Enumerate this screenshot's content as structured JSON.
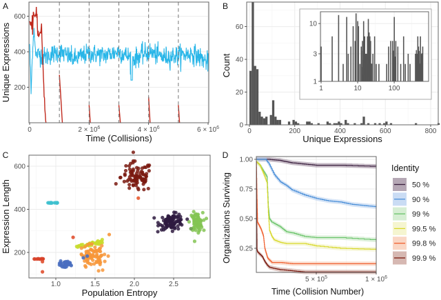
{
  "chart_data": [
    {
      "panel": "A",
      "type": "line",
      "xlabel": "Time (Collisions)",
      "ylabel": "Unique Expressions",
      "xlim": [
        0,
        6000000
      ],
      "ylim": [
        0,
        680
      ],
      "xticks": [
        0,
        2000000,
        4000000,
        6000000
      ],
      "xtick_labels": [
        "0",
        "2 × 10^6",
        "4 × 10^6",
        "6 × 10^6"
      ],
      "yticks": [
        200,
        400,
        600
      ],
      "ytick_labels": [
        "200",
        "400",
        "600"
      ],
      "vlines_dashed": [
        1000000,
        2000000,
        3000000,
        4000000,
        5000000
      ],
      "grid": true,
      "series": [
        {
          "name": "population",
          "color": "#29b6e8",
          "description": "noisy line around 380 after initial transient",
          "x": [
            0,
            50000,
            100000,
            150000,
            200000,
            300000,
            500000,
            1000000,
            1500000,
            2000000,
            2500000,
            3000000,
            3500000,
            4000000,
            4500000,
            5000000,
            5500000,
            6000000
          ],
          "y": [
            450,
            160,
            420,
            540,
            380,
            390,
            370,
            400,
            360,
            390,
            380,
            400,
            360,
            400,
            370,
            380,
            390,
            340
          ]
        },
        {
          "name": "bursts",
          "color": "#c0281c",
          "segments": [
            {
              "x": [
                0,
                50000,
                100000,
                200000,
                250000,
                300000,
                400000,
                450000,
                500000,
                550000
              ],
              "y": [
                580,
                520,
                560,
                640,
                600,
                470,
                510,
                300,
                100,
                0
              ]
            },
            {
              "x": [
                1000000,
                1050000,
                1100000
              ],
              "y": [
                270,
                140,
                0
              ]
            },
            {
              "x": [
                2000000,
                2040000
              ],
              "y": [
                100,
                0
              ]
            },
            {
              "x": [
                3000000,
                3050000
              ],
              "y": [
                100,
                0
              ]
            },
            {
              "x": [
                4000000,
                4050000
              ],
              "y": [
                145,
                0
              ]
            },
            {
              "x": [
                5000000,
                5040000
              ],
              "y": [
                100,
                0
              ]
            }
          ]
        }
      ]
    },
    {
      "panel": "B",
      "type": "bar",
      "xlabel": "Unique Expressions",
      "ylabel": "Count",
      "xlim": [
        -10,
        840
      ],
      "ylim": [
        0,
        75
      ],
      "xticks": [
        0,
        200,
        400,
        600,
        800
      ],
      "xtick_labels": [
        "0",
        "200",
        "400",
        "600",
        "800"
      ],
      "yticks": [
        0,
        20,
        40,
        60
      ],
      "ytick_labels": [
        "0",
        "20",
        "40",
        "60"
      ],
      "grid": true,
      "bin_width": 10,
      "bins": [
        0,
        10,
        20,
        30,
        40,
        50,
        60,
        70,
        90,
        100,
        110,
        120,
        130,
        170,
        190,
        200,
        210,
        250,
        260,
        270,
        300,
        340,
        350,
        370,
        380,
        390,
        400,
        420,
        430,
        460,
        490,
        500,
        520,
        550,
        570,
        590,
        600,
        620,
        730,
        830
      ],
      "values": [
        33,
        75,
        36,
        34,
        8,
        5,
        4,
        5,
        6,
        15,
        5,
        3,
        3,
        2,
        3,
        2,
        1,
        2,
        2,
        1,
        1,
        2,
        1,
        1,
        1,
        2,
        1,
        3,
        1,
        1,
        1,
        5,
        1,
        1,
        1,
        1,
        2,
        1,
        1,
        1
      ],
      "inset": {
        "type": "bar",
        "xscale": "log",
        "yscale": "log",
        "xlim": [
          1,
          800
        ],
        "ylim": [
          1,
          16
        ],
        "xticks": [
          1,
          10,
          100
        ],
        "xtick_labels": [
          "1",
          "10",
          "100"
        ],
        "yticks": [
          1,
          3,
          10
        ],
        "ytick_labels": [
          "1",
          "3",
          "10"
        ],
        "x": [
          1,
          2,
          3,
          4,
          5,
          5.5,
          6.5,
          7.5,
          8.5,
          9,
          10,
          10.5,
          11.5,
          12.5,
          13.5,
          14.5,
          15.5,
          16.5,
          17.5,
          18.5,
          19.5,
          20.5,
          21.5,
          22.5,
          24,
          26,
          29,
          32,
          38,
          62,
          70,
          80,
          90,
          100,
          110,
          125,
          150,
          180,
          200,
          240,
          270,
          380,
          420,
          440,
          460,
          480,
          520,
          560,
          600
        ],
        "values": [
          4,
          6,
          14,
          2,
          13,
          3,
          4,
          9,
          5,
          15,
          11,
          9,
          2,
          4,
          5,
          11,
          6,
          3,
          3,
          6,
          12,
          7,
          6,
          5,
          2,
          3,
          6,
          2,
          2,
          2,
          4,
          5,
          5,
          13,
          5,
          4,
          2,
          6,
          2,
          3,
          2,
          3,
          3,
          6,
          4,
          3,
          6,
          3,
          4
        ]
      }
    },
    {
      "panel": "C",
      "type": "scatter",
      "xlabel": "Population Entropy",
      "ylabel": "Expression Length",
      "xlim": [
        0.65,
        2.95
      ],
      "ylim": [
        85,
        655
      ],
      "xticks": [
        1.0,
        1.5,
        2.0,
        2.5
      ],
      "xtick_labels": [
        "1.0",
        "1.5",
        "2.0",
        "2.5"
      ],
      "yticks": [
        200,
        400,
        600
      ],
      "ytick_labels": [
        "200",
        "400",
        "600"
      ],
      "grid": true,
      "clusters": [
        {
          "color": "#7a1a10",
          "cx": 2.03,
          "cy": 550,
          "sx": 0.1,
          "sy": 35,
          "n": 90
        },
        {
          "color": "#2e1a40",
          "cx": 2.48,
          "cy": 342,
          "sx": 0.08,
          "sy": 18,
          "n": 90
        },
        {
          "color": "#84c454",
          "cx": 2.79,
          "cy": 340,
          "sx": 0.04,
          "sy": 22,
          "n": 70
        },
        {
          "color": "#3fc1cf",
          "cx": 0.96,
          "cy": 430,
          "sx": 0.03,
          "sy": 1,
          "n": 20
        },
        {
          "color": "#c8dc2e",
          "cx": 1.43,
          "cy": 238,
          "sx": 0.09,
          "sy": 8,
          "n": 50
        },
        {
          "color": "#f7963a",
          "cx": 1.48,
          "cy": 180,
          "sx": 0.08,
          "sy": 25,
          "n": 80
        },
        {
          "color": "#4a6fc0",
          "cx": 1.12,
          "cy": 145,
          "sx": 0.04,
          "sy": 7,
          "n": 40
        },
        {
          "color": "#d8432a",
          "cx": 0.78,
          "cy": 170,
          "sx": 0.03,
          "sy": 1,
          "n": 12
        }
      ],
      "outliers": [
        {
          "x": 2.05,
          "y": 452,
          "color": "#e85a30"
        },
        {
          "x": 1.22,
          "y": 270,
          "color": "#e05030"
        },
        {
          "x": 0.83,
          "y": 110,
          "color": "#e05030"
        },
        {
          "x": 0.83,
          "y": 157,
          "color": "#e05030"
        },
        {
          "x": 1.68,
          "y": 283,
          "color": "#f7963a"
        },
        {
          "x": 1.35,
          "y": 175,
          "color": "#4a6fc0"
        },
        {
          "x": 1.4,
          "y": 183,
          "color": "#4a6fc0"
        },
        {
          "x": 2.72,
          "y": 310,
          "color": "#6a9a50"
        }
      ]
    },
    {
      "panel": "D",
      "type": "line",
      "xlabel": "Time (Collision Number)",
      "ylabel": "Organizations Surviving",
      "xlim": [
        0,
        1000000
      ],
      "ylim": [
        0.04,
        1.0
      ],
      "xticks": [
        500000,
        1000000
      ],
      "xtick_labels": [
        "5 × 10^5",
        "1 × 10^6"
      ],
      "yticks": [
        0.25,
        0.5,
        0.75,
        1.0
      ],
      "ytick_labels": [
        "0.25",
        "0.50",
        "0.75",
        "1.00"
      ],
      "grid": true,
      "legend": {
        "title": "Identity",
        "position": "right"
      },
      "series": [
        {
          "name": "50 %",
          "color": "#3a1f3e",
          "band": "#9c8a9c",
          "x": [
            0,
            100000,
            200000,
            250000,
            300000,
            400000,
            500000,
            700000,
            1000000
          ],
          "y": [
            1.0,
            1.0,
            0.99,
            0.98,
            0.97,
            0.96,
            0.95,
            0.95,
            0.94
          ]
        },
        {
          "name": "90 %",
          "color": "#4a8fd8",
          "band": "#b8d0f0",
          "x": [
            0,
            80000,
            100000,
            150000,
            200000,
            250000,
            300000,
            400000,
            500000,
            600000,
            700000,
            800000,
            900000,
            1000000
          ],
          "y": [
            1.0,
            1.0,
            0.97,
            0.87,
            0.81,
            0.78,
            0.74,
            0.7,
            0.67,
            0.65,
            0.64,
            0.62,
            0.61,
            0.6
          ]
        },
        {
          "name": "99 %",
          "color": "#6ac46a",
          "band": "#c8e8c4",
          "x": [
            0,
            30000,
            60000,
            90000,
            100000,
            110000,
            130000,
            200000,
            250000,
            300000,
            400000,
            500000,
            700000,
            1000000
          ],
          "y": [
            0.98,
            0.95,
            0.9,
            0.85,
            0.6,
            0.5,
            0.47,
            0.43,
            0.39,
            0.38,
            0.35,
            0.34,
            0.34,
            0.32
          ]
        },
        {
          "name": "99.5 %",
          "color": "#d8d82a",
          "band": "#f2f2c0",
          "x": [
            0,
            30000,
            60000,
            90000,
            100000,
            110000,
            130000,
            150000,
            200000,
            250000,
            400000,
            500000,
            700000,
            1000000
          ],
          "y": [
            0.98,
            0.95,
            0.88,
            0.8,
            0.55,
            0.4,
            0.35,
            0.32,
            0.3,
            0.29,
            0.29,
            0.27,
            0.25,
            0.24
          ]
        },
        {
          "name": "99.8 %",
          "color": "#f06030",
          "band": "#f8c8b0",
          "x": [
            0,
            5000,
            10000,
            20000,
            40000,
            60000,
            70000,
            90000,
            100000,
            130000,
            200000,
            300000,
            1000000
          ],
          "y": [
            0.98,
            0.7,
            0.47,
            0.45,
            0.41,
            0.35,
            0.25,
            0.18,
            0.16,
            0.13,
            0.13,
            0.12,
            0.12
          ]
        },
        {
          "name": "99.9 %",
          "color": "#7a1a10",
          "band": "#c8a098",
          "x": [
            0,
            3000,
            6000,
            10000,
            30000,
            50000,
            70000,
            90000,
            110000,
            150000,
            200000,
            300000,
            400000,
            1000000
          ],
          "y": [
            0.98,
            0.5,
            0.24,
            0.22,
            0.2,
            0.18,
            0.14,
            0.11,
            0.09,
            0.08,
            0.07,
            0.06,
            0.05,
            0.05
          ]
        }
      ]
    }
  ],
  "panel_labels": [
    "A",
    "B",
    "C",
    "D"
  ],
  "colors": {
    "axis": "#555555",
    "grid": "#ebebeb",
    "bar": "#555555",
    "dash": "#777777",
    "frame": "#666666"
  }
}
